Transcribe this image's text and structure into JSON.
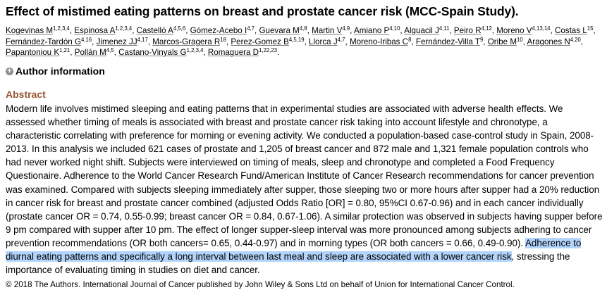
{
  "title": "Effect of mistimed eating patterns on breast and prostate cancer risk (MCC-Spain Study).",
  "authors": [
    {
      "name": "Kogevinas M",
      "aff": "1,2,3,4"
    },
    {
      "name": "Espinosa A",
      "aff": "1,2,3,4"
    },
    {
      "name": "Castelló A",
      "aff": "4,5,6"
    },
    {
      "name": "Gómez-Acebo I",
      "aff": "4,7"
    },
    {
      "name": "Guevara M",
      "aff": "4,8"
    },
    {
      "name": "Martin V",
      "aff": "4,9"
    },
    {
      "name": "Amiano P",
      "aff": "4,10"
    },
    {
      "name": "Alguacil J",
      "aff": "4,11"
    },
    {
      "name": "Peiro R",
      "aff": "4,12"
    },
    {
      "name": "Moreno V",
      "aff": "4,13,14"
    },
    {
      "name": "Costas L",
      "aff": "15"
    },
    {
      "name": "Fernández-Tardón G",
      "aff": "4,16"
    },
    {
      "name": "Jimenez JJ",
      "aff": "4,17"
    },
    {
      "name": "Marcos-Gragera R",
      "aff": "18"
    },
    {
      "name": "Perez-Gomez B",
      "aff": "4,5,19"
    },
    {
      "name": "Llorca J",
      "aff": "4,7"
    },
    {
      "name": "Moreno-Iribas C",
      "aff": "8"
    },
    {
      "name": "Fernández-Villa T",
      "aff": "9"
    },
    {
      "name": "Oribe M",
      "aff": "10"
    },
    {
      "name": "Aragones N",
      "aff": "4,20"
    },
    {
      "name": "Papantoniou K",
      "aff": "1,21"
    },
    {
      "name": "Pollán M",
      "aff": "4,5"
    },
    {
      "name": "Castano-Vinyals G",
      "aff": "1,2,3,4"
    },
    {
      "name": "Romaguera D",
      "aff": "1,22,23"
    }
  ],
  "author_info_label": "Author information",
  "abstract_heading": "Abstract",
  "abstract_text": "Modern life involves mistimed sleeping and eating patterns that in experimental studies are associated with adverse health effects. We assessed whether timing of meals is associated with breast and prostate cancer risk taking into account lifestyle and chronotype, a characteristic correlating with preference for morning or evening activity. We conducted a population-based case-control study in Spain, 2008-2013. In this analysis we included 621 cases of prostate and 1,205 of breast cancer and 872 male and 1,321 female population controls who had never worked night shift. Subjects were interviewed on timing of meals, sleep and chronotype and completed a Food Frequency Questionaire. Adherence to the World Cancer Research Fund/American Institute of Cancer Research recommendations for cancer prevention was examined. Compared with subjects sleeping immediately after supper, those sleeping two or more hours after supper had a 20% reduction in cancer risk for breast and prostate cancer combined (adjusted Odds Ratio [OR] = 0.80, 95%CI 0.67-0.96) and in each cancer individually (prostate cancer OR = 0.74, 0.55-0.99; breast cancer OR = 0.84, 0.67-1.06). A similar protection was observed in subjects having supper before 9 pm compared with supper after 10 pm. The effect of longer supper-sleep interval was more pronounced among subjects adhering to cancer prevention recommendations (OR both cancers= 0.65, 0.44-0.97) and in morning types (OR both cancers = 0.66, 0.49-0.90). ",
  "abstract_highlight": "Adherence to diurnal eating patterns and specifically a long interval between last meal and sleep are associated with a lower cancer risk",
  "abstract_tail": ", stressing the importance of evaluating timing in studies on diet and cancer.",
  "copyright": "© 2018 The Authors. International Journal of Cancer published by John Wiley & Sons Ltd on behalf of Union for International Cancer Control.",
  "colors": {
    "abstract_heading": "#985735",
    "highlight": "#b3d4fc"
  }
}
